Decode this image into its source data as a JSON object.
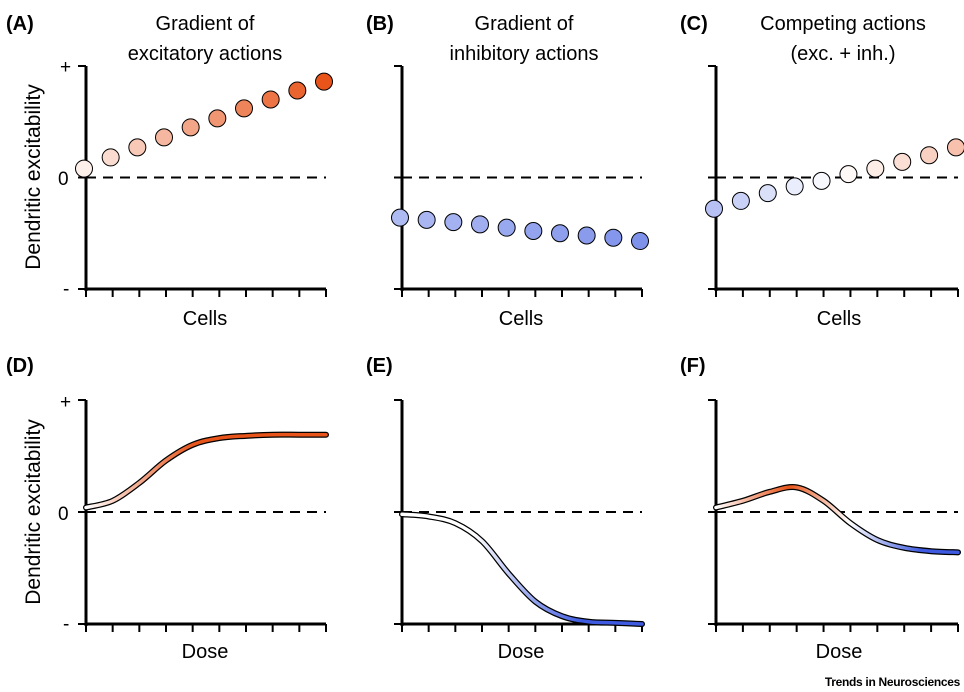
{
  "credit": "Trends in Neurosciences",
  "colors": {
    "excitatory": "#e8541a",
    "inhibitory": "#3d5ae0",
    "neutral": "#ffffff",
    "dashed": "#000000"
  },
  "y_axis": {
    "label": "Dendritic excitability",
    "plus": "+",
    "zero": "0",
    "minus": "-"
  },
  "chart_data": [
    {
      "panel": "(A)",
      "type": "scatter",
      "title": [
        "Gradient of",
        "excitatory actions"
      ],
      "xlabel": "Cells",
      "ylim": [
        -1,
        1
      ],
      "x": [
        1,
        2,
        3,
        4,
        5,
        6,
        7,
        8,
        9,
        10
      ],
      "values": [
        0.08,
        0.18,
        0.27,
        0.36,
        0.45,
        0.53,
        0.62,
        0.7,
        0.78,
        0.86
      ]
    },
    {
      "panel": "(B)",
      "type": "scatter",
      "title": [
        "Gradient of",
        "inhibitory actions"
      ],
      "xlabel": "Cells",
      "ylim": [
        -1,
        1
      ],
      "x": [
        1,
        2,
        3,
        4,
        5,
        6,
        7,
        8,
        9,
        10
      ],
      "values": [
        -0.36,
        -0.38,
        -0.4,
        -0.42,
        -0.45,
        -0.48,
        -0.5,
        -0.52,
        -0.54,
        -0.57
      ]
    },
    {
      "panel": "(C)",
      "type": "scatter",
      "title": [
        "Competing actions",
        "(exc. + inh.)"
      ],
      "xlabel": "Cells",
      "ylim": [
        -1,
        1
      ],
      "x": [
        1,
        2,
        3,
        4,
        5,
        6,
        7,
        8,
        9,
        10
      ],
      "values": [
        -0.28,
        -0.21,
        -0.14,
        -0.08,
        -0.03,
        0.03,
        0.08,
        0.14,
        0.2,
        0.27
      ]
    },
    {
      "panel": "(D)",
      "type": "line",
      "xlabel": "Dose",
      "ylim": [
        -1,
        1
      ],
      "x": [
        0,
        1,
        2,
        3,
        4,
        5,
        6,
        7,
        8,
        9
      ],
      "values": [
        0.04,
        0.1,
        0.26,
        0.46,
        0.6,
        0.66,
        0.68,
        0.69,
        0.69,
        0.69
      ]
    },
    {
      "panel": "(E)",
      "type": "line",
      "xlabel": "Dose",
      "ylim": [
        -1,
        1
      ],
      "x": [
        0,
        1,
        2,
        3,
        4,
        5,
        6,
        7,
        8,
        9
      ],
      "values": [
        -0.02,
        -0.04,
        -0.1,
        -0.26,
        -0.55,
        -0.8,
        -0.93,
        -0.98,
        -0.99,
        -1.0
      ]
    },
    {
      "panel": "(F)",
      "type": "line",
      "xlabel": "Dose",
      "ylim": [
        -1,
        1
      ],
      "x": [
        0,
        1,
        2,
        3,
        4,
        5,
        6,
        7,
        8,
        9
      ],
      "values": [
        0.04,
        0.1,
        0.18,
        0.22,
        0.1,
        -0.1,
        -0.25,
        -0.32,
        -0.35,
        -0.36
      ]
    }
  ]
}
